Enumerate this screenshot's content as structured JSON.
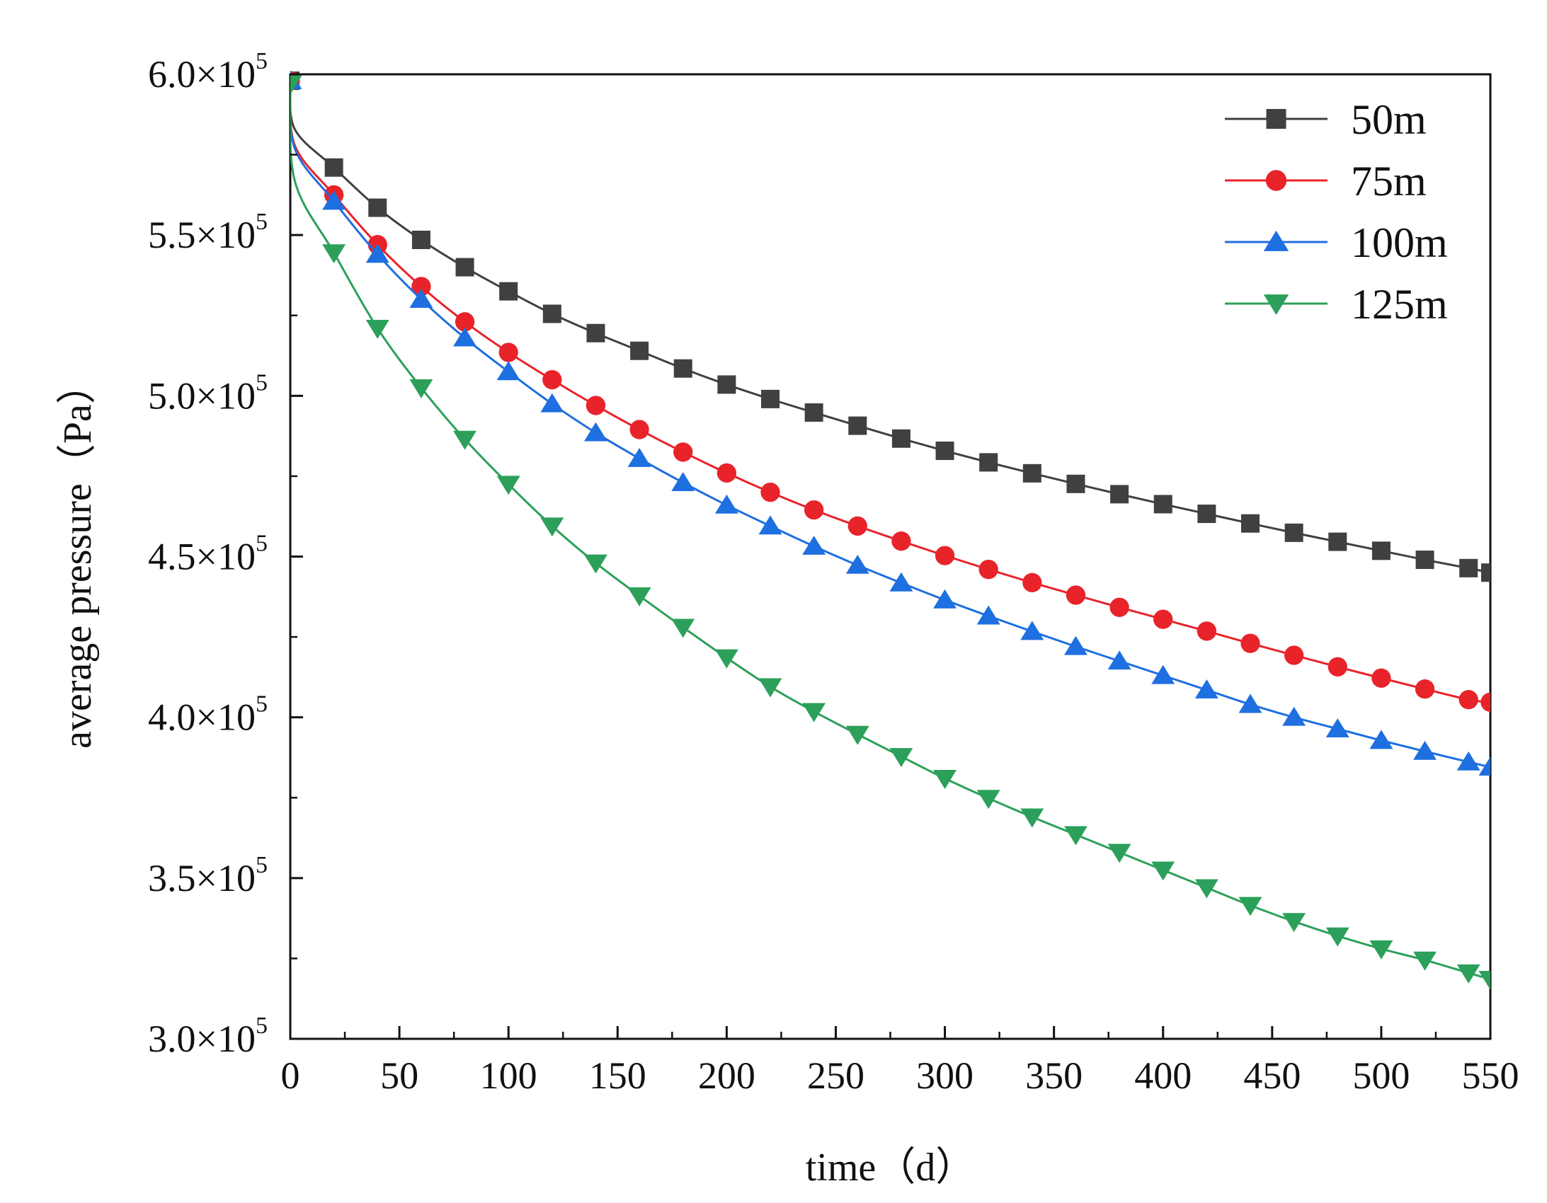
{
  "chart_data": {
    "type": "line",
    "title": "",
    "xlabel": "time（d）",
    "ylabel": "average pressure（Pa）",
    "xlim": [
      0,
      550
    ],
    "ylim": [
      300000,
      600000
    ],
    "x_ticks": [
      0,
      50,
      100,
      150,
      200,
      250,
      300,
      350,
      400,
      450,
      500,
      550
    ],
    "x_tick_labels": [
      "0",
      "50",
      "100",
      "150",
      "200",
      "250",
      "300",
      "350",
      "400",
      "450",
      "500",
      "550"
    ],
    "y_ticks": [
      300000,
      350000,
      400000,
      450000,
      500000,
      550000,
      600000
    ],
    "y_tick_labels": [
      {
        "mantissa": "3.0×10",
        "exp": "5"
      },
      {
        "mantissa": "3.5×10",
        "exp": "5"
      },
      {
        "mantissa": "4.0×10",
        "exp": "5"
      },
      {
        "mantissa": "4.5×10",
        "exp": "5"
      },
      {
        "mantissa": "5.0×10",
        "exp": "5"
      },
      {
        "mantissa": "5.5×10",
        "exp": "5"
      },
      {
        "mantissa": "6.0×10",
        "exp": "5"
      }
    ],
    "grid": false,
    "legend_position": "top-right",
    "x": [
      0,
      2,
      20,
      40,
      60,
      80,
      100,
      120,
      140,
      160,
      180,
      200,
      220,
      240,
      260,
      280,
      300,
      320,
      340,
      360,
      380,
      400,
      420,
      440,
      460,
      480,
      500,
      520,
      540,
      550
    ],
    "marker_x": [
      0,
      20,
      40,
      60,
      80,
      100,
      120,
      140,
      160,
      180,
      200,
      220,
      240,
      260,
      280,
      300,
      320,
      340,
      360,
      380,
      400,
      420,
      440,
      460,
      480,
      500,
      520,
      540,
      550
    ],
    "series": [
      {
        "name": "50m",
        "color": "#404040",
        "marker": "square",
        "values": [
          598000,
          583000,
          571000,
          558500,
          548500,
          540000,
          532500,
          525500,
          519500,
          514000,
          508500,
          503500,
          499000,
          494800,
          490700,
          486700,
          482900,
          479300,
          475900,
          472600,
          469400,
          466300,
          463300,
          460300,
          457400,
          454600,
          451800,
          449000,
          446400,
          445000
        ]
      },
      {
        "name": "75m",
        "color": "#e8232a",
        "marker": "circle",
        "values": [
          598000,
          578000,
          562500,
          547000,
          534000,
          523000,
          513500,
          505000,
          497000,
          489500,
          482500,
          476000,
          470000,
          464500,
          459500,
          454800,
          450300,
          446000,
          441900,
          438000,
          434200,
          430500,
          426800,
          423000,
          419300,
          415700,
          412200,
          408800,
          405500,
          404700
        ]
      },
      {
        "name": "100m",
        "color": "#1e6fe0",
        "marker": "triangle-up",
        "values": [
          598000,
          577000,
          560500,
          544000,
          530000,
          518000,
          507500,
          497500,
          488500,
          480500,
          473000,
          466000,
          459500,
          453200,
          447300,
          441800,
          436500,
          431500,
          426700,
          422000,
          417500,
          413000,
          408500,
          404000,
          400000,
          396400,
          392800,
          389400,
          386100,
          384500
        ]
      },
      {
        "name": "125m",
        "color": "#2ca05a",
        "marker": "triangle-down",
        "values": [
          597000,
          567000,
          544500,
          521000,
          502500,
          486500,
          472500,
          459500,
          448000,
          437800,
          428000,
          418500,
          409500,
          401800,
          394700,
          387800,
          381000,
          374800,
          369000,
          363500,
          358000,
          352500,
          347000,
          341500,
          336500,
          332000,
          328000,
          324500,
          320500,
          318500
        ]
      }
    ]
  }
}
